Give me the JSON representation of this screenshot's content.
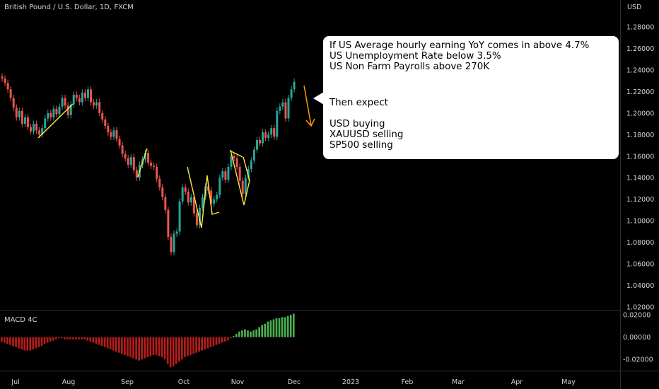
{
  "chart_data": [
    {
      "type": "candlestick",
      "title": "British Pound / U.S. Dollar, 1D, FXCM",
      "ylabel": "USD",
      "ylim": [
        1.02,
        1.3
      ],
      "yticks": [
        "1.28000",
        "1.26000",
        "1.24000",
        "1.22000",
        "1.20000",
        "1.18000",
        "1.16000",
        "1.14000",
        "1.12000",
        "1.10000",
        "1.08000",
        "1.06000",
        "1.04000",
        "1.02000"
      ],
      "xticks": [
        "Jul",
        "Aug",
        "Sep",
        "Oct",
        "Nov",
        "Dec",
        "2023",
        "Feb",
        "Mar",
        "Apr",
        "May"
      ],
      "series": [
        {
          "name": "candles",
          "values": [
            1.232,
            1.228,
            1.222,
            1.214,
            1.205,
            1.196,
            1.202,
            1.19,
            1.196,
            1.187,
            1.183,
            1.19,
            1.184,
            1.18,
            1.186,
            1.195,
            1.2,
            1.196,
            1.204,
            1.199,
            1.206,
            1.214,
            1.207,
            1.198,
            1.208,
            1.217,
            1.214,
            1.21,
            1.219,
            1.214,
            1.222,
            1.21,
            1.207,
            1.21,
            1.2,
            1.194,
            1.188,
            1.182,
            1.178,
            1.184,
            1.176,
            1.17,
            1.162,
            1.158,
            1.152,
            1.159,
            1.147,
            1.14,
            1.152,
            1.157,
            1.163,
            1.154,
            1.151,
            1.15,
            1.139,
            1.131,
            1.122,
            1.11,
            1.085,
            1.071,
            1.088,
            1.09,
            1.118,
            1.131,
            1.127,
            1.117,
            1.122,
            1.107,
            1.096,
            1.112,
            1.122,
            1.132,
            1.128,
            1.116,
            1.12,
            1.124,
            1.14,
            1.146,
            1.138,
            1.15,
            1.16,
            1.158,
            1.15,
            1.137,
            1.125,
            1.14,
            1.148,
            1.156,
            1.166,
            1.175,
            1.172,
            1.182,
            1.177,
            1.18,
            1.186,
            1.178,
            1.202,
            1.206,
            1.21,
            1.195,
            1.214,
            1.222,
            1.229
          ]
        }
      ],
      "annotations": [
        "If US Average hourly earning YoY comes in above 4.7%",
        "US Unemployment Rate below 3.5%",
        "US Non Farm Payrolls above  270K",
        "Then expect",
        "USD buying",
        "XAUUSD selling",
        "SP500 selling"
      ],
      "colors": {
        "up": "#26a69a",
        "down": "#ef5350",
        "trendline": "#ffeb3b",
        "arrow": "#ff9800"
      }
    },
    {
      "type": "bar",
      "title": "MACD 4C",
      "yticks": [
        "0.02000",
        "0.00000",
        "-0.02000"
      ],
      "ylim": [
        -0.03,
        0.022
      ],
      "values": [
        -0.004,
        -0.005,
        -0.006,
        -0.007,
        -0.008,
        -0.009,
        -0.01,
        -0.011,
        -0.012,
        -0.012,
        -0.012,
        -0.011,
        -0.01,
        -0.009,
        -0.008,
        -0.006,
        -0.005,
        -0.004,
        -0.003,
        -0.002,
        -0.001,
        -0.001,
        -0.002,
        -0.002,
        -0.002,
        -0.002,
        -0.002,
        -0.002,
        -0.002,
        -0.002,
        -0.003,
        -0.004,
        -0.005,
        -0.006,
        -0.007,
        -0.008,
        -0.009,
        -0.01,
        -0.011,
        -0.012,
        -0.013,
        -0.014,
        -0.015,
        -0.016,
        -0.017,
        -0.018,
        -0.019,
        -0.02,
        -0.021,
        -0.02,
        -0.019,
        -0.018,
        -0.017,
        -0.016,
        -0.016,
        -0.017,
        -0.018,
        -0.02,
        -0.024,
        -0.027,
        -0.026,
        -0.024,
        -0.022,
        -0.02,
        -0.018,
        -0.017,
        -0.016,
        -0.015,
        -0.014,
        -0.013,
        -0.012,
        -0.011,
        -0.01,
        -0.009,
        -0.008,
        -0.007,
        -0.006,
        -0.005,
        -0.004,
        -0.003,
        -0.001,
        0.001,
        0.003,
        0.005,
        0.006,
        0.007,
        0.006,
        0.005,
        0.006,
        0.007,
        0.009,
        0.011,
        0.012,
        0.014,
        0.015,
        0.016,
        0.017,
        0.017,
        0.018,
        0.018,
        0.019,
        0.02,
        0.021
      ]
    }
  ]
}
